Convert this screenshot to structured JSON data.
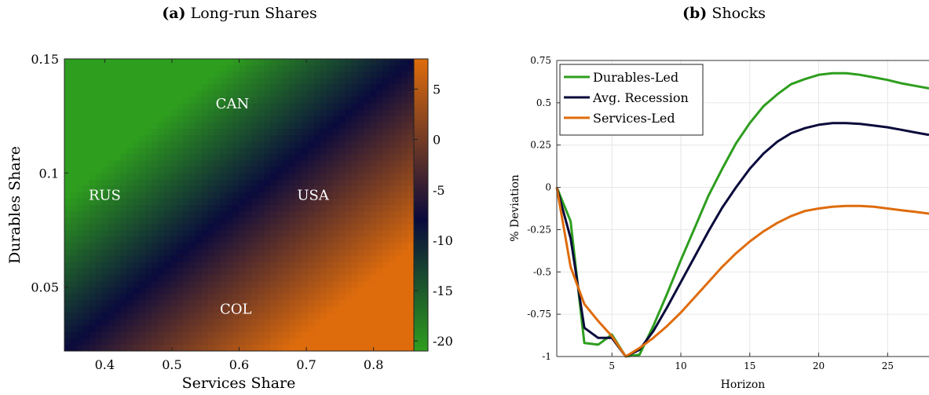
{
  "chart_data": [
    {
      "type": "heatmap",
      "panel_label": "(a)",
      "title": "Long-run Shares",
      "xlabel": "Services Share",
      "ylabel": "Durables Share",
      "xlim": [
        0.34,
        0.86
      ],
      "ylim": [
        0.022,
        0.15
      ],
      "xticks": [
        0.4,
        0.5,
        0.6,
        0.7,
        0.8
      ],
      "yticks": [
        0.05,
        0.1,
        0.15
      ],
      "colorbar": {
        "range": [
          -21,
          8
        ],
        "ticks": [
          -20,
          -15,
          -10,
          -5,
          0,
          5
        ],
        "colors": {
          "low": "#2e9e1e",
          "mid": "#0a0a3c",
          "high": "#de6c0c"
        }
      },
      "annotations": [
        {
          "text": "CAN",
          "x": 0.59,
          "y": 0.13
        },
        {
          "text": "RUS",
          "x": 0.4,
          "y": 0.09
        },
        {
          "text": "USA",
          "x": 0.71,
          "y": 0.09
        },
        {
          "text": "COL",
          "x": 0.595,
          "y": 0.04
        }
      ]
    },
    {
      "type": "line",
      "panel_label": "(b)",
      "title": "Shocks",
      "xlabel": "Horizon",
      "ylabel": "% Deviation",
      "xlim": [
        1,
        28
      ],
      "ylim": [
        -1,
        0.75
      ],
      "xticks": [
        5,
        10,
        15,
        20,
        25
      ],
      "yticks": [
        -1,
        -0.75,
        -0.5,
        -0.25,
        0,
        0.25,
        0.5,
        0.75
      ],
      "ytick_labels": [
        "-1",
        "-0.75",
        "-0.5",
        "-0.25",
        "0",
        "0.25",
        "0.5",
        "0.75"
      ],
      "grid": true,
      "legend_position": "top-left",
      "x": [
        1,
        2,
        3,
        4,
        5,
        6,
        7,
        8,
        9,
        10,
        11,
        12,
        13,
        14,
        15,
        16,
        17,
        18,
        19,
        20,
        21,
        22,
        23,
        24,
        25,
        26,
        27,
        28
      ],
      "series": [
        {
          "name": "Durables-Led",
          "color": "#2e9e1e",
          "values": [
            0,
            -0.2,
            -0.92,
            -0.93,
            -0.87,
            -1.0,
            -0.99,
            -0.82,
            -0.63,
            -0.43,
            -0.24,
            -0.05,
            0.11,
            0.26,
            0.38,
            0.48,
            0.55,
            0.61,
            0.64,
            0.665,
            0.675,
            0.675,
            0.665,
            0.65,
            0.635,
            0.615,
            0.6,
            0.585
          ]
        },
        {
          "name": "Avg. Recession",
          "color": "#0a0a3c",
          "values": [
            0,
            -0.3,
            -0.83,
            -0.89,
            -0.89,
            -1.0,
            -0.96,
            -0.85,
            -0.71,
            -0.56,
            -0.41,
            -0.26,
            -0.12,
            0.0,
            0.11,
            0.2,
            0.27,
            0.32,
            0.35,
            0.37,
            0.38,
            0.38,
            0.375,
            0.365,
            0.355,
            0.34,
            0.325,
            0.31
          ]
        },
        {
          "name": "Services-Led",
          "color": "#de6c0c",
          "values": [
            0,
            -0.47,
            -0.69,
            -0.79,
            -0.88,
            -1.0,
            -0.95,
            -0.89,
            -0.82,
            -0.74,
            -0.65,
            -0.56,
            -0.47,
            -0.39,
            -0.32,
            -0.26,
            -0.21,
            -0.17,
            -0.14,
            -0.125,
            -0.115,
            -0.11,
            -0.11,
            -0.115,
            -0.125,
            -0.135,
            -0.145,
            -0.155
          ]
        }
      ]
    }
  ]
}
